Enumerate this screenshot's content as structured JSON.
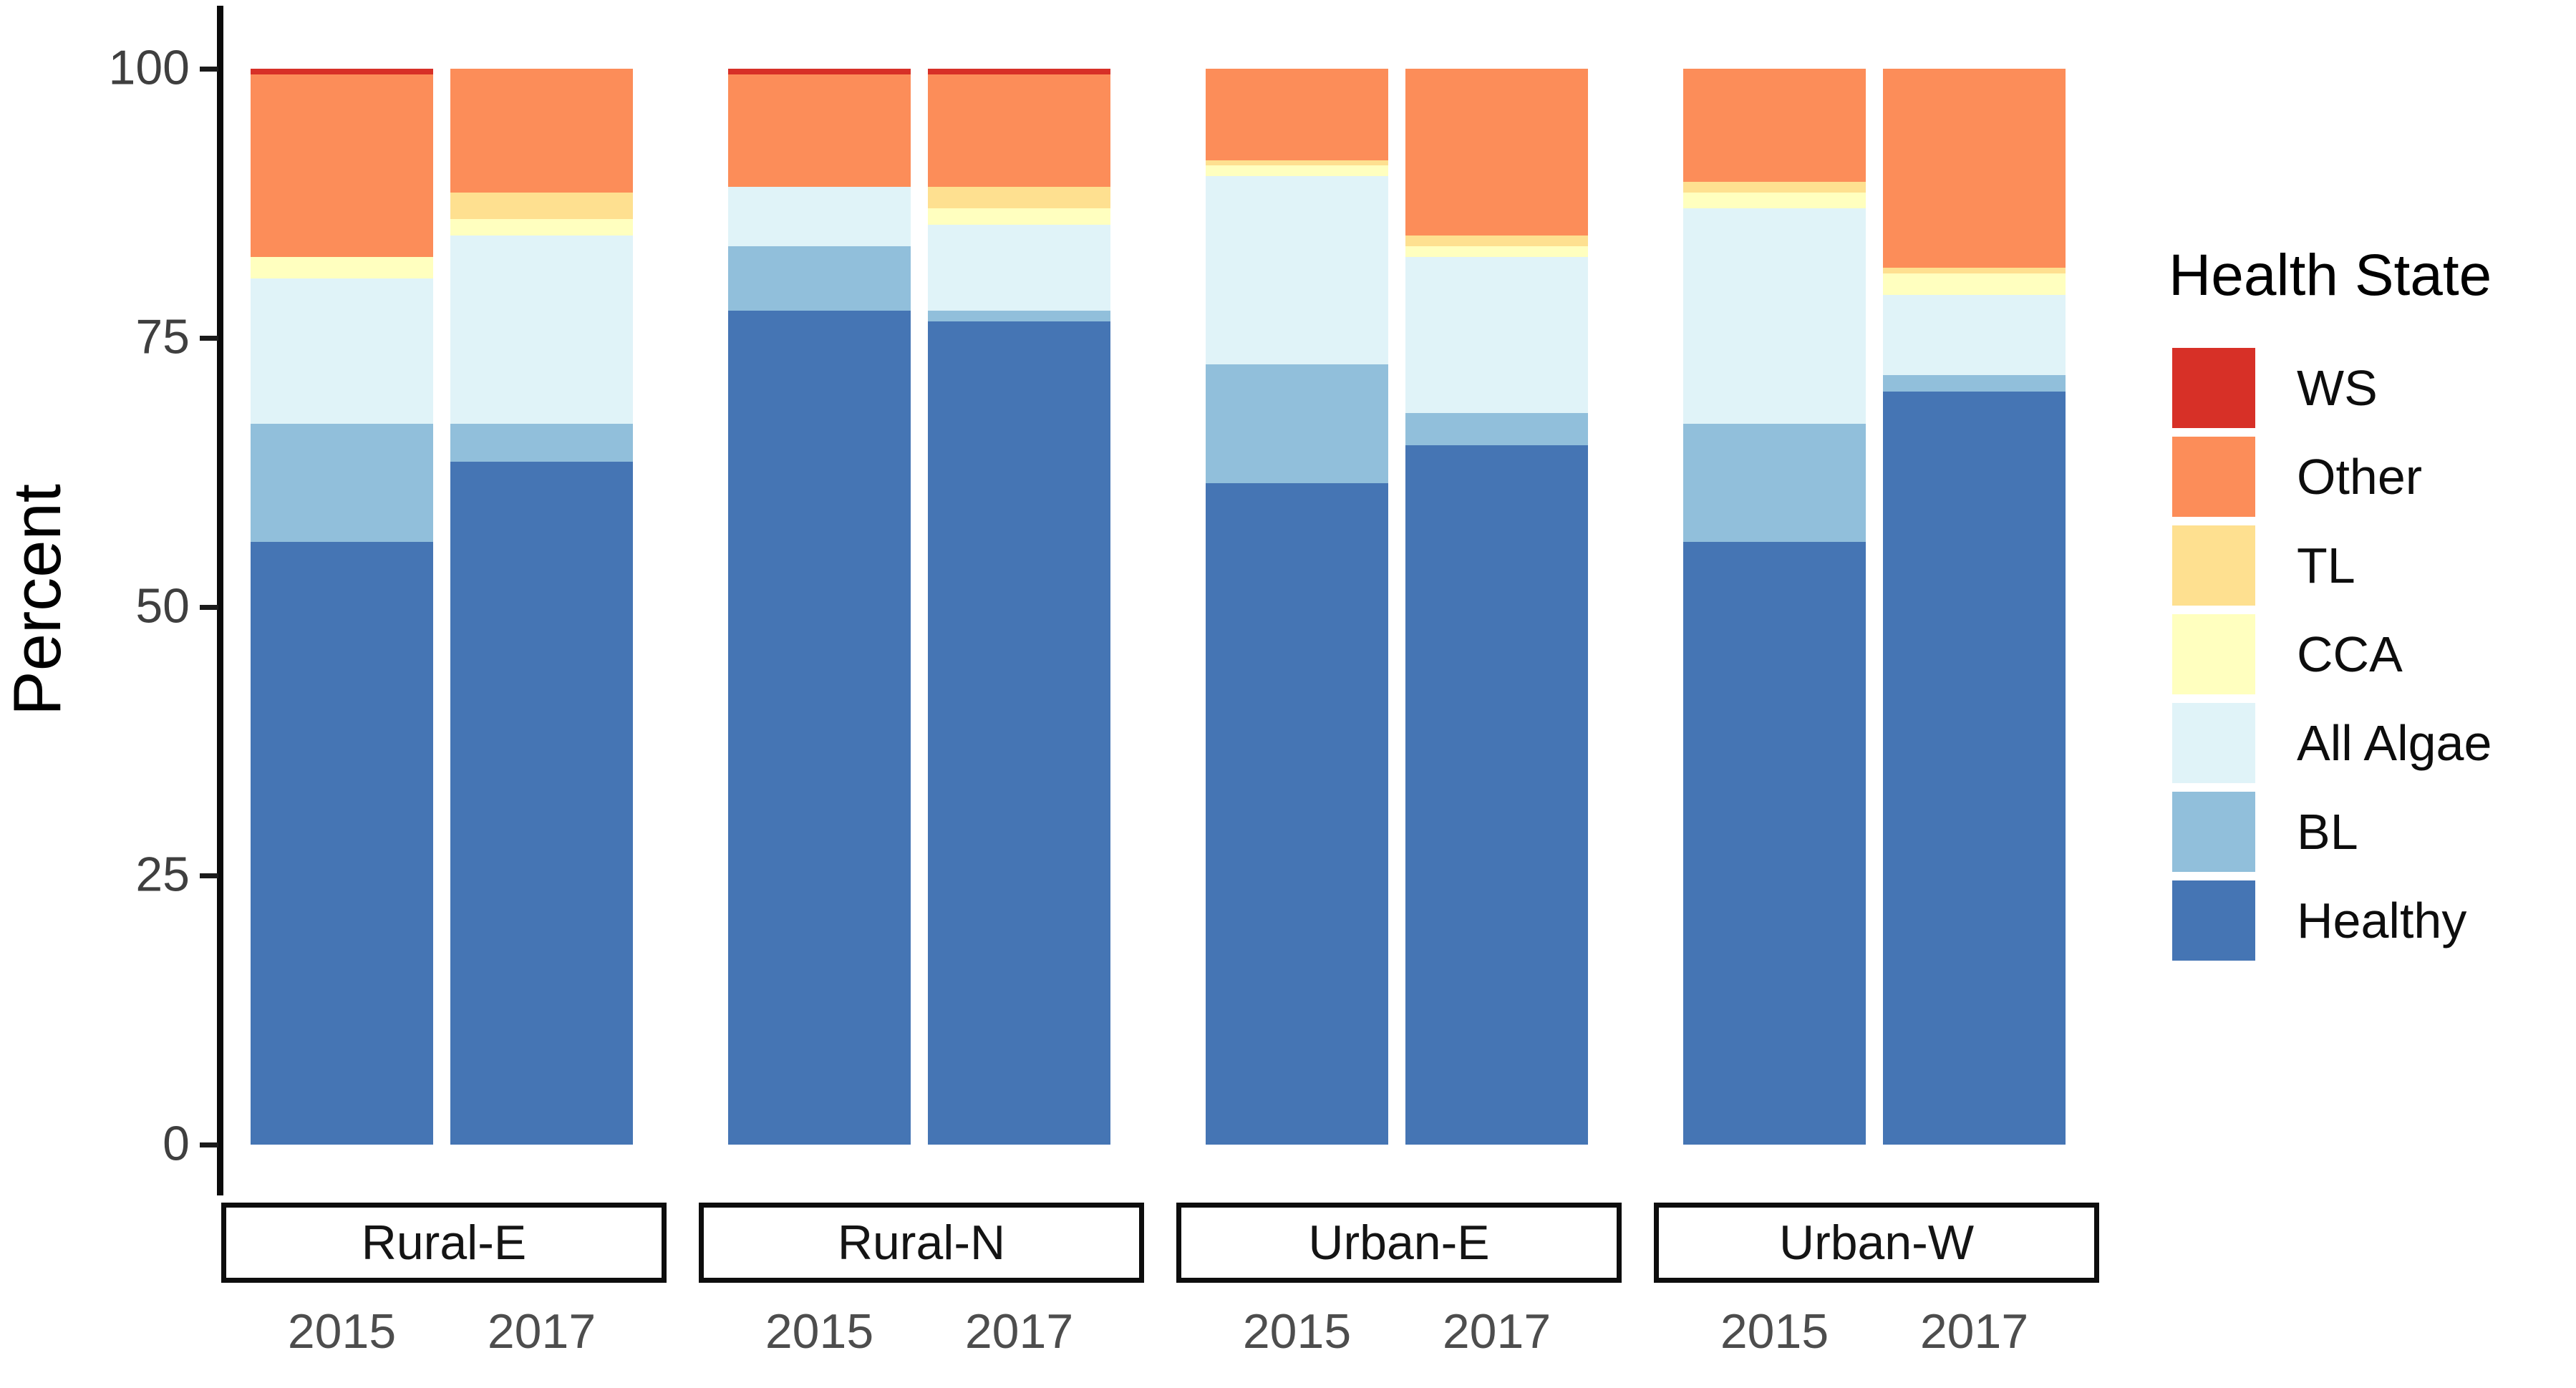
{
  "figure": {
    "y_axis_label": "Percent",
    "legend_title": "Health State"
  },
  "chart_data": {
    "type": "bar",
    "subtype": "stacked-percent-faceted",
    "title": "",
    "xlabel": "",
    "ylabel": "Percent",
    "ylim": [
      0,
      100
    ],
    "yticks": [
      0,
      25,
      50,
      75,
      100
    ],
    "grid": "off",
    "legend_position": "right",
    "legend_title": "Health State",
    "stack_top_to_bottom": [
      "WS",
      "Other",
      "TL",
      "CCA",
      "All Algae",
      "BL",
      "Healthy"
    ],
    "colors": {
      "WS": "#d73027",
      "Other": "#fc8d59",
      "TL": "#fee090",
      "CCA": "#ffffbf",
      "All Algae": "#e0f3f8",
      "BL": "#91bfdb",
      "Healthy": "#4575b4"
    },
    "facets": [
      {
        "label": "Rural-E",
        "bars": [
          {
            "year": "2015",
            "values": {
              "Healthy": 56,
              "BL": 11,
              "All Algae": 13.5,
              "CCA": 2,
              "TL": 0,
              "Other": 17,
              "WS": 0.5
            }
          },
          {
            "year": "2017",
            "values": {
              "Healthy": 63.5,
              "BL": 3.5,
              "All Algae": 17.5,
              "CCA": 1.5,
              "TL": 2.5,
              "Other": 11.5,
              "WS": 0
            }
          }
        ]
      },
      {
        "label": "Rural-N",
        "bars": [
          {
            "year": "2015",
            "values": {
              "Healthy": 77.5,
              "BL": 6,
              "All Algae": 5.5,
              "CCA": 0,
              "TL": 0,
              "Other": 10.5,
              "WS": 0.5
            }
          },
          {
            "year": "2017",
            "values": {
              "Healthy": 76.5,
              "BL": 1,
              "All Algae": 8,
              "CCA": 1.5,
              "TL": 2,
              "Other": 10.5,
              "WS": 0.5
            }
          }
        ]
      },
      {
        "label": "Urban-E",
        "bars": [
          {
            "year": "2015",
            "values": {
              "Healthy": 61.5,
              "BL": 11,
              "All Algae": 17.5,
              "CCA": 1,
              "TL": 0.5,
              "Other": 8.5,
              "WS": 0
            }
          },
          {
            "year": "2017",
            "values": {
              "Healthy": 65,
              "BL": 3,
              "All Algae": 14.5,
              "CCA": 1,
              "TL": 1,
              "Other": 15.5,
              "WS": 0
            }
          }
        ]
      },
      {
        "label": "Urban-W",
        "bars": [
          {
            "year": "2015",
            "values": {
              "Healthy": 56,
              "BL": 11,
              "All Algae": 20,
              "CCA": 1.5,
              "TL": 1,
              "Other": 10.5,
              "WS": 0
            }
          },
          {
            "year": "2017",
            "values": {
              "Healthy": 70,
              "BL": 1.5,
              "All Algae": 7.5,
              "CCA": 2,
              "TL": 0.5,
              "Other": 18.5,
              "WS": 0
            }
          }
        ]
      }
    ]
  },
  "legend": {
    "title": "Health State",
    "items": [
      {
        "label": "WS",
        "color": "#d73027"
      },
      {
        "label": "Other",
        "color": "#fc8d59"
      },
      {
        "label": "TL",
        "color": "#fee090"
      },
      {
        "label": "CCA",
        "color": "#ffffbf"
      },
      {
        "label": "All Algae",
        "color": "#e0f3f8"
      },
      {
        "label": "BL",
        "color": "#91bfdb"
      },
      {
        "label": "Healthy",
        "color": "#4575b4"
      }
    ]
  }
}
